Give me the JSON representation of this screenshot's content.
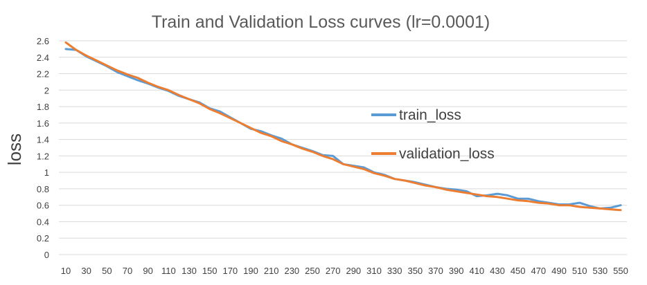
{
  "chart_data": {
    "type": "line",
    "title": "Train and Validation Loss curves  (lr=0.0001)",
    "xlabel": "",
    "ylabel": "loss",
    "ylim": [
      0,
      2.6
    ],
    "yticks": [
      "0",
      "0.2",
      "0.4",
      "0.6",
      "0.8",
      "1",
      "1.2",
      "1.4",
      "1.6",
      "1.8",
      "2",
      "2.2",
      "2.4",
      "2.6"
    ],
    "ytick_values": [
      0,
      0.2,
      0.4,
      0.6,
      0.8,
      1.0,
      1.2,
      1.4,
      1.6,
      1.8,
      2.0,
      2.2,
      2.4,
      2.6
    ],
    "x": [
      10,
      20,
      30,
      40,
      50,
      60,
      70,
      80,
      90,
      100,
      110,
      120,
      130,
      140,
      150,
      160,
      170,
      180,
      190,
      200,
      210,
      220,
      230,
      240,
      250,
      260,
      270,
      280,
      290,
      300,
      310,
      320,
      330,
      340,
      350,
      360,
      370,
      380,
      390,
      400,
      410,
      420,
      430,
      440,
      450,
      460,
      470,
      480,
      490,
      500,
      510,
      520,
      530,
      540,
      550
    ],
    "xtick_labels": [
      "10",
      "30",
      "50",
      "70",
      "90",
      "110",
      "130",
      "150",
      "170",
      "190",
      "210",
      "230",
      "250",
      "270",
      "290",
      "310",
      "330",
      "350",
      "370",
      "390",
      "410",
      "430",
      "450",
      "470",
      "490",
      "510",
      "530",
      "550"
    ],
    "grid": true,
    "legend_position": "center-right",
    "series": [
      {
        "name": "train_loss",
        "color": "#5b9bd5",
        "values": [
          2.5,
          2.49,
          2.41,
          2.35,
          2.29,
          2.22,
          2.17,
          2.12,
          2.08,
          2.03,
          1.99,
          1.93,
          1.89,
          1.85,
          1.78,
          1.74,
          1.67,
          1.6,
          1.53,
          1.5,
          1.45,
          1.41,
          1.34,
          1.3,
          1.26,
          1.21,
          1.2,
          1.1,
          1.08,
          1.06,
          1.0,
          0.97,
          0.92,
          0.9,
          0.88,
          0.85,
          0.82,
          0.8,
          0.79,
          0.77,
          0.71,
          0.72,
          0.74,
          0.72,
          0.68,
          0.68,
          0.65,
          0.63,
          0.61,
          0.61,
          0.63,
          0.59,
          0.56,
          0.57,
          0.6
        ]
      },
      {
        "name": "validation_loss",
        "color": "#ed7d31",
        "values": [
          2.58,
          2.49,
          2.42,
          2.36,
          2.3,
          2.24,
          2.19,
          2.15,
          2.09,
          2.04,
          2.0,
          1.94,
          1.89,
          1.84,
          1.77,
          1.72,
          1.66,
          1.6,
          1.54,
          1.48,
          1.44,
          1.38,
          1.34,
          1.29,
          1.25,
          1.2,
          1.16,
          1.1,
          1.07,
          1.04,
          0.99,
          0.96,
          0.92,
          0.9,
          0.87,
          0.84,
          0.82,
          0.79,
          0.77,
          0.75,
          0.73,
          0.71,
          0.7,
          0.68,
          0.66,
          0.65,
          0.63,
          0.62,
          0.6,
          0.6,
          0.58,
          0.57,
          0.56,
          0.55,
          0.54
        ]
      }
    ]
  }
}
